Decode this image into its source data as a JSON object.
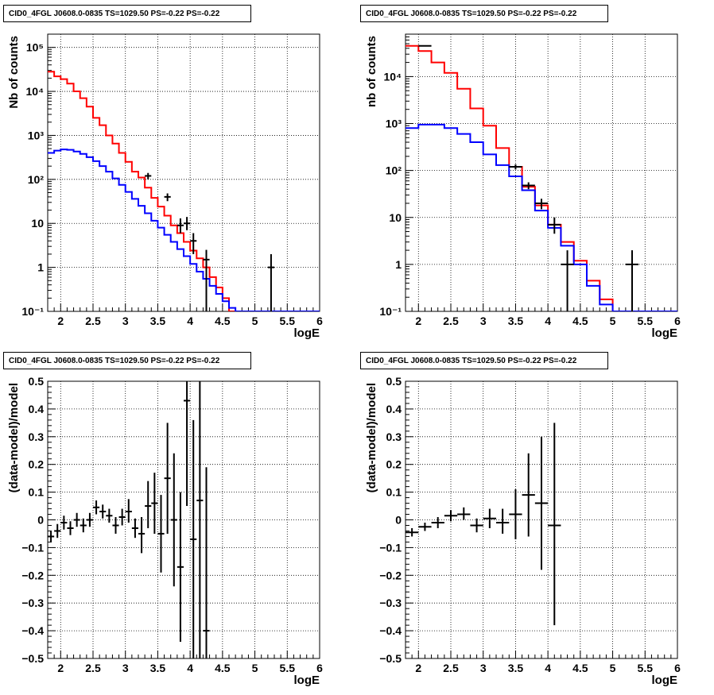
{
  "chart_data": [
    {
      "type": "line",
      "title": "CID0_4FGL J0608.0-0835 TS=1029.50 PS=-0.22 PS=-0.22",
      "xlabel": "logE",
      "ylabel": "Nb of counts",
      "xlim": [
        1.8,
        6
      ],
      "ylim": [
        0.1,
        200000
      ],
      "yscale": "log",
      "grid": true,
      "xticks": [
        2,
        2.5,
        3,
        3.5,
        4,
        4.5,
        5,
        5.5,
        6
      ],
      "xtick_labels": [
        "2",
        "2.5",
        "3",
        "3.5",
        "4",
        "4.5",
        "5",
        "5.5",
        "6"
      ],
      "yticks": [
        0.1,
        1,
        10,
        100,
        1000,
        10000,
        100000
      ],
      "ytick_labels": [
        "10⁻¹",
        "1",
        "10",
        "10²",
        "10³",
        "10⁴",
        "10⁵"
      ],
      "series": [
        {
          "color": "#ff0000",
          "style": "step",
          "edges": [
            1.8,
            1.9,
            2.0,
            2.1,
            2.2,
            2.3,
            2.4,
            2.5,
            2.6,
            2.7,
            2.8,
            2.9,
            3.0,
            3.1,
            3.2,
            3.3,
            3.4,
            3.5,
            3.6,
            3.7,
            3.8,
            3.9,
            4.0,
            4.1,
            4.2,
            4.3,
            4.4,
            4.5,
            4.6,
            4.7,
            4.8,
            4.9,
            5.0,
            5.1,
            5.2,
            5.3,
            5.4,
            5.5,
            5.6,
            5.7,
            5.8,
            5.9,
            6.0
          ],
          "values": [
            28000,
            22000,
            19000,
            15000,
            10000,
            7000,
            4500,
            2500,
            1700,
            1000,
            650,
            400,
            250,
            150,
            110,
            65,
            38,
            24,
            15,
            9,
            6,
            3.8,
            2.4,
            1.6,
            1.0,
            0.6,
            0.35,
            0.2,
            0.1,
            0.1,
            0.1,
            0.1,
            0.1,
            0.1,
            0.1,
            0.1,
            0.1,
            0.1,
            0.1,
            0.1,
            0.1,
            0.1
          ]
        },
        {
          "color": "#0000ff",
          "style": "step",
          "edges": [
            1.8,
            1.9,
            2.0,
            2.1,
            2.2,
            2.3,
            2.4,
            2.5,
            2.6,
            2.7,
            2.8,
            2.9,
            3.0,
            3.1,
            3.2,
            3.3,
            3.4,
            3.5,
            3.6,
            3.7,
            3.8,
            3.9,
            4.0,
            4.1,
            4.2,
            4.3,
            4.4,
            4.5,
            4.6,
            4.7,
            4.8,
            4.9,
            5.0,
            5.1,
            5.2,
            5.3,
            5.4,
            5.5,
            5.6,
            5.7,
            5.8,
            5.9,
            6.0
          ],
          "values": [
            400,
            450,
            480,
            470,
            430,
            380,
            320,
            260,
            200,
            150,
            105,
            75,
            52,
            36,
            25,
            17,
            11.5,
            8,
            5.5,
            3.8,
            2.6,
            1.8,
            1.2,
            0.8,
            0.55,
            0.38,
            0.25,
            0.17,
            0.12,
            0.1,
            0.1,
            0.1,
            0.1,
            0.1,
            0.1,
            0.1,
            0.1,
            0.1,
            0.1,
            0.1,
            0.1,
            0.1
          ]
        },
        {
          "color": "#000000",
          "style": "errorbar",
          "points": [
            {
              "x": 3.35,
              "y": 120,
              "xerr": 0.05,
              "ylo": 100,
              "yhi": 140
            },
            {
              "x": 3.65,
              "y": 40,
              "xerr": 0.05,
              "ylo": 32,
              "yhi": 48
            },
            {
              "x": 3.85,
              "y": 9,
              "xerr": 0.05,
              "ylo": 6,
              "yhi": 13
            },
            {
              "x": 3.95,
              "y": 10,
              "xerr": 0.05,
              "ylo": 7,
              "yhi": 14
            },
            {
              "x": 4.05,
              "y": 4,
              "xerr": 0.05,
              "ylo": 2,
              "yhi": 6
            },
            {
              "x": 4.25,
              "y": 1.5,
              "xerr": 0.05,
              "ylo": 0.1,
              "yhi": 2.5
            },
            {
              "x": 5.25,
              "y": 1,
              "xerr": 0.05,
              "ylo": 0.1,
              "yhi": 2
            }
          ]
        }
      ]
    },
    {
      "type": "line",
      "title": "CID0_4FGL J0608.0-0835 TS=1029.50 PS=-0.22 PS=-0.22",
      "xlabel": "logE",
      "ylabel": "nb of counts",
      "xlim": [
        1.8,
        6
      ],
      "ylim": [
        0.1,
        80000
      ],
      "yscale": "log",
      "grid": true,
      "xticks": [
        2,
        2.5,
        3,
        3.5,
        4,
        4.5,
        5,
        5.5,
        6
      ],
      "xtick_labels": [
        "2",
        "2.5",
        "3",
        "3.5",
        "4",
        "4.5",
        "5",
        "5.5",
        "6"
      ],
      "yticks": [
        0.1,
        1,
        10,
        100,
        1000,
        10000
      ],
      "ytick_labels": [
        "10⁻¹",
        "1",
        "10",
        "10²",
        "10³",
        "10⁴"
      ],
      "series": [
        {
          "color": "#ff0000",
          "style": "step",
          "edges": [
            1.8,
            2.0,
            2.2,
            2.4,
            2.6,
            2.8,
            3.0,
            3.2,
            3.4,
            3.6,
            3.8,
            4.0,
            4.2,
            4.4,
            4.6,
            4.8,
            5.0,
            5.2,
            5.4,
            5.6,
            5.8,
            6.0
          ],
          "values": [
            45000,
            35000,
            20000,
            12000,
            5500,
            2100,
            900,
            300,
            120,
            45,
            18,
            7,
            3,
            1.2,
            0.45,
            0.18,
            0.1,
            0.1,
            0.1,
            0.1,
            0.1
          ]
        },
        {
          "color": "#0000ff",
          "style": "step",
          "edges": [
            1.8,
            2.0,
            2.2,
            2.4,
            2.6,
            2.8,
            3.0,
            3.2,
            3.4,
            3.6,
            3.8,
            4.0,
            4.2,
            4.4,
            4.6,
            4.8,
            5.0,
            5.2,
            5.4,
            5.6,
            5.8,
            6.0
          ],
          "values": [
            800,
            950,
            950,
            800,
            600,
            400,
            220,
            130,
            75,
            38,
            14,
            6,
            2.5,
            1.0,
            0.35,
            0.14,
            0.1,
            0.1,
            0.1,
            0.1,
            0.1
          ]
        },
        {
          "color": "#000000",
          "style": "errorbar",
          "points": [
            {
              "x": 2.1,
              "y": 45000,
              "xerr": 0.1,
              "ylo": 44000,
              "yhi": 46000
            },
            {
              "x": 3.5,
              "y": 120,
              "xerr": 0.1,
              "ylo": 105,
              "yhi": 135
            },
            {
              "x": 3.7,
              "y": 48,
              "xerr": 0.1,
              "ylo": 40,
              "yhi": 56
            },
            {
              "x": 3.9,
              "y": 20,
              "xerr": 0.1,
              "ylo": 15,
              "yhi": 25
            },
            {
              "x": 4.1,
              "y": 7,
              "xerr": 0.1,
              "ylo": 4.5,
              "yhi": 10
            },
            {
              "x": 4.3,
              "y": 1,
              "xerr": 0.1,
              "ylo": 0.1,
              "yhi": 2
            },
            {
              "x": 5.3,
              "y": 1,
              "xerr": 0.1,
              "ylo": 0.1,
              "yhi": 2
            }
          ]
        }
      ]
    },
    {
      "type": "scatter",
      "title": "CID0_4FGL J0608.0-0835 TS=1029.50 PS=-0.22 PS=-0.22",
      "xlabel": "logE",
      "ylabel": "(data-model)/model",
      "xlim": [
        1.8,
        6
      ],
      "ylim": [
        -0.5,
        0.5
      ],
      "grid": true,
      "xticks": [
        2,
        2.5,
        3,
        3.5,
        4,
        4.5,
        5,
        5.5,
        6
      ],
      "xtick_labels": [
        "2",
        "2.5",
        "3",
        "3.5",
        "4",
        "4.5",
        "5",
        "5.5",
        "6"
      ],
      "yticks": [
        -0.5,
        -0.4,
        -0.3,
        -0.2,
        -0.1,
        0,
        0.1,
        0.2,
        0.3,
        0.4,
        0.5
      ],
      "ytick_labels": [
        "−0.5",
        "−0.4",
        "−0.3",
        "−0.2",
        "−0.1",
        "0",
        "0.1",
        "0.2",
        "0.3",
        "0.4",
        "0.5"
      ],
      "series": [
        {
          "color": "#000000",
          "style": "errorbar",
          "points": [
            {
              "x": 1.85,
              "y": -0.06,
              "xerr": 0.05,
              "ylo": -0.08,
              "yhi": -0.04
            },
            {
              "x": 1.95,
              "y": -0.04,
              "xerr": 0.05,
              "ylo": -0.065,
              "yhi": -0.015
            },
            {
              "x": 2.05,
              "y": -0.01,
              "xerr": 0.05,
              "ylo": -0.035,
              "yhi": 0.015
            },
            {
              "x": 2.15,
              "y": -0.03,
              "xerr": 0.05,
              "ylo": -0.055,
              "yhi": -0.005
            },
            {
              "x": 2.25,
              "y": 0.0,
              "xerr": 0.05,
              "ylo": -0.025,
              "yhi": 0.025
            },
            {
              "x": 2.35,
              "y": -0.02,
              "xerr": 0.05,
              "ylo": -0.045,
              "yhi": 0.005
            },
            {
              "x": 2.45,
              "y": 0.0,
              "xerr": 0.05,
              "ylo": -0.025,
              "yhi": 0.025
            },
            {
              "x": 2.55,
              "y": 0.045,
              "xerr": 0.05,
              "ylo": 0.02,
              "yhi": 0.07
            },
            {
              "x": 2.65,
              "y": 0.03,
              "xerr": 0.05,
              "ylo": 0.005,
              "yhi": 0.055
            },
            {
              "x": 2.75,
              "y": 0.015,
              "xerr": 0.05,
              "ylo": -0.01,
              "yhi": 0.04
            },
            {
              "x": 2.85,
              "y": -0.02,
              "xerr": 0.05,
              "ylo": -0.05,
              "yhi": 0.01
            },
            {
              "x": 2.95,
              "y": 0.01,
              "xerr": 0.05,
              "ylo": -0.02,
              "yhi": 0.04
            },
            {
              "x": 3.05,
              "y": 0.03,
              "xerr": 0.05,
              "ylo": -0.01,
              "yhi": 0.075
            },
            {
              "x": 3.15,
              "y": -0.03,
              "xerr": 0.05,
              "ylo": -0.065,
              "yhi": 0.005
            },
            {
              "x": 3.25,
              "y": -0.05,
              "xerr": 0.05,
              "ylo": -0.12,
              "yhi": 0.01
            },
            {
              "x": 3.35,
              "y": 0.05,
              "xerr": 0.05,
              "ylo": -0.03,
              "yhi": 0.14
            },
            {
              "x": 3.45,
              "y": 0.06,
              "xerr": 0.05,
              "ylo": -0.05,
              "yhi": 0.17
            },
            {
              "x": 3.55,
              "y": -0.05,
              "xerr": 0.05,
              "ylo": -0.19,
              "yhi": 0.09
            },
            {
              "x": 3.65,
              "y": 0.15,
              "xerr": 0.05,
              "ylo": -0.05,
              "yhi": 0.35
            },
            {
              "x": 3.75,
              "y": 0.0,
              "xerr": 0.05,
              "ylo": -0.24,
              "yhi": 0.24
            },
            {
              "x": 3.85,
              "y": -0.17,
              "xerr": 0.05,
              "ylo": -0.44,
              "yhi": 0.1
            },
            {
              "x": 3.95,
              "y": 0.43,
              "xerr": 0.05,
              "ylo": 0.05,
              "yhi": 0.5
            },
            {
              "x": 4.05,
              "y": -0.07,
              "xerr": 0.05,
              "ylo": -0.5,
              "yhi": 0.36
            },
            {
              "x": 4.15,
              "y": 0.07,
              "xerr": 0.05,
              "ylo": -0.5,
              "yhi": 0.5
            },
            {
              "x": 4.25,
              "y": -0.4,
              "xerr": 0.05,
              "ylo": -0.5,
              "yhi": 0.19
            }
          ]
        }
      ]
    },
    {
      "type": "scatter",
      "title": "CID0_4FGL J0608.0-0835 TS=1029.50 PS=-0.22 PS=-0.22",
      "xlabel": "logE",
      "ylabel": "(data-model)/model",
      "xlim": [
        1.8,
        6
      ],
      "ylim": [
        -0.5,
        0.5
      ],
      "grid": true,
      "xticks": [
        2,
        2.5,
        3,
        3.5,
        4,
        4.5,
        5,
        5.5,
        6
      ],
      "xtick_labels": [
        "2",
        "2.5",
        "3",
        "3.5",
        "4",
        "4.5",
        "5",
        "5.5",
        "6"
      ],
      "yticks": [
        -0.5,
        -0.4,
        -0.3,
        -0.2,
        -0.1,
        0,
        0.1,
        0.2,
        0.3,
        0.4,
        0.5
      ],
      "ytick_labels": [
        "−0.5",
        "−0.4",
        "−0.3",
        "−0.2",
        "−0.1",
        "0",
        "0.1",
        "0.2",
        "0.3",
        "0.4",
        "0.5"
      ],
      "series": [
        {
          "color": "#000000",
          "style": "errorbar",
          "points": [
            {
              "x": 1.9,
              "y": -0.045,
              "xerr": 0.1,
              "ylo": -0.06,
              "yhi": -0.03
            },
            {
              "x": 2.1,
              "y": -0.025,
              "xerr": 0.1,
              "ylo": -0.04,
              "yhi": -0.01
            },
            {
              "x": 2.3,
              "y": -0.01,
              "xerr": 0.1,
              "ylo": -0.03,
              "yhi": 0.01
            },
            {
              "x": 2.5,
              "y": 0.015,
              "xerr": 0.1,
              "ylo": -0.005,
              "yhi": 0.035
            },
            {
              "x": 2.7,
              "y": 0.02,
              "xerr": 0.1,
              "ylo": 0.0,
              "yhi": 0.045
            },
            {
              "x": 2.9,
              "y": -0.02,
              "xerr": 0.1,
              "ylo": -0.045,
              "yhi": 0.005
            },
            {
              "x": 3.1,
              "y": 0.005,
              "xerr": 0.1,
              "ylo": -0.03,
              "yhi": 0.04
            },
            {
              "x": 3.3,
              "y": -0.01,
              "xerr": 0.1,
              "ylo": -0.05,
              "yhi": 0.04
            },
            {
              "x": 3.5,
              "y": 0.02,
              "xerr": 0.1,
              "ylo": -0.07,
              "yhi": 0.11
            },
            {
              "x": 3.7,
              "y": 0.09,
              "xerr": 0.1,
              "ylo": -0.06,
              "yhi": 0.24
            },
            {
              "x": 3.9,
              "y": 0.06,
              "xerr": 0.1,
              "ylo": -0.18,
              "yhi": 0.3
            },
            {
              "x": 4.1,
              "y": -0.02,
              "xerr": 0.1,
              "ylo": -0.38,
              "yhi": 0.35
            }
          ]
        }
      ]
    }
  ]
}
